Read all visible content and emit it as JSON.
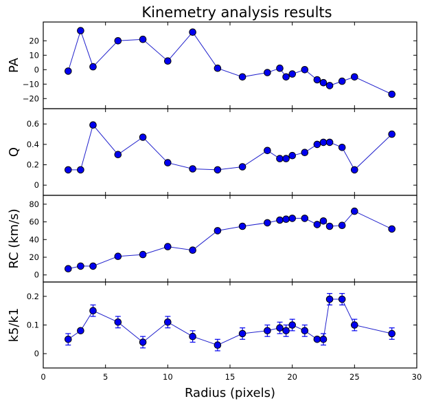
{
  "chart_data": {
    "type": "scatter",
    "title": "Kinemetry analysis results",
    "xlabel": "Radius (pixels)",
    "xlim": [
      0,
      30
    ],
    "xticks": [
      0,
      5,
      10,
      15,
      20,
      25,
      30
    ],
    "x": [
      2,
      3,
      4,
      6,
      8,
      10,
      12,
      14,
      16,
      18,
      19,
      19.5,
      20,
      21,
      22,
      22.5,
      23,
      24,
      25,
      28
    ],
    "marker_color": "#0000ee",
    "line_color": "#1f1fcc",
    "panels": [
      {
        "ylabel": "PA",
        "ylim": [
          -27,
          33
        ],
        "yticks": [
          -20,
          -10,
          0,
          10,
          20
        ],
        "values": [
          -1,
          27,
          2,
          20,
          21,
          6,
          26,
          1,
          -5,
          -2,
          1,
          -5,
          -3,
          0,
          -7,
          -9,
          -11,
          -8,
          -5,
          -17
        ]
      },
      {
        "ylabel": "Q",
        "ylim": [
          -0.1,
          0.75
        ],
        "yticks": [
          0,
          0.2,
          0.4,
          0.6
        ],
        "values": [
          0.15,
          0.15,
          0.59,
          0.3,
          0.47,
          0.22,
          0.16,
          0.15,
          0.18,
          0.34,
          0.26,
          0.26,
          0.29,
          0.32,
          0.4,
          0.42,
          0.42,
          0.37,
          0.15,
          0.5
        ]
      },
      {
        "ylabel": "RC (km/s)",
        "ylim": [
          -8,
          90
        ],
        "yticks": [
          0,
          20,
          40,
          60,
          80
        ],
        "values": [
          7,
          10,
          10,
          21,
          23,
          32,
          28,
          50,
          55,
          59,
          62,
          63,
          64,
          64,
          57,
          61,
          55,
          56,
          72,
          52
        ]
      },
      {
        "ylabel": "k5/k1",
        "ylim": [
          -0.05,
          0.25
        ],
        "yticks": [
          0,
          0.1,
          0.2
        ],
        "values": [
          0.05,
          0.08,
          0.15,
          0.11,
          0.04,
          0.11,
          0.06,
          0.03,
          0.07,
          0.08,
          0.09,
          0.08,
          0.1,
          0.08,
          0.05,
          0.05,
          0.19,
          0.19,
          0.1,
          0.07
        ],
        "errors": [
          0.02,
          0.0,
          0.02,
          0.02,
          0.02,
          0.02,
          0.02,
          0.02,
          0.02,
          0.02,
          0.02,
          0.02,
          0.02,
          0.02,
          0.0,
          0.02,
          0.02,
          0.02,
          0.02,
          0.02
        ]
      }
    ]
  }
}
